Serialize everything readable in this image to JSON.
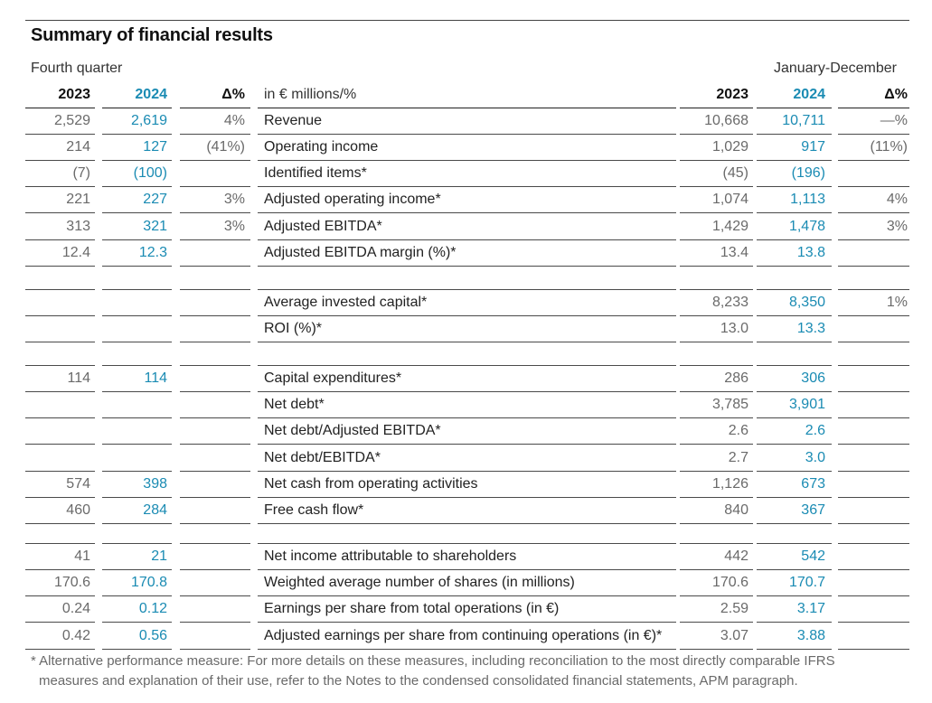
{
  "title": "Summary of financial results",
  "period_left": "Fourth quarter",
  "period_right": "January-December",
  "header": {
    "q_2023": "2023",
    "q_2024": "2024",
    "q_delta": "Δ%",
    "label": "in € millions/%",
    "y_2023": "2023",
    "y_2024": "2024",
    "y_delta": "Δ%"
  },
  "rows": [
    {
      "q23": "2,529",
      "q24": "2,619",
      "qd": "4%",
      "label": "Revenue",
      "y23": "10,668",
      "y24": "10,711",
      "yd": "—%"
    },
    {
      "q23": "214",
      "q24": "127",
      "qd": "(41%)",
      "label": "Operating income",
      "y23": "1,029",
      "y24": "917",
      "yd": "(11%)"
    },
    {
      "q23": "(7)",
      "q24": "(100)",
      "qd": "",
      "label": "Identified items*",
      "y23": "(45)",
      "y24": "(196)",
      "yd": ""
    },
    {
      "q23": "221",
      "q24": "227",
      "qd": "3%",
      "label": "Adjusted operating income*",
      "y23": "1,074",
      "y24": "1,113",
      "yd": "4%"
    },
    {
      "q23": "313",
      "q24": "321",
      "qd": "3%",
      "label": "Adjusted EBITDA*",
      "y23": "1,429",
      "y24": "1,478",
      "yd": "3%"
    },
    {
      "q23": "12.4",
      "q24": "12.3",
      "qd": "",
      "label": "Adjusted EBITDA margin (%)*",
      "y23": "13.4",
      "y24": "13.8",
      "yd": ""
    },
    {
      "q23": "",
      "q24": "",
      "qd": "",
      "label": "Average invested capital*",
      "y23": "8,233",
      "y24": "8,350",
      "yd": "1%"
    },
    {
      "q23": "",
      "q24": "",
      "qd": "",
      "label": "ROI (%)*",
      "y23": "13.0",
      "y24": "13.3",
      "yd": ""
    },
    {
      "q23": "114",
      "q24": "114",
      "qd": "",
      "label": "Capital expenditures*",
      "y23": "286",
      "y24": "306",
      "yd": ""
    },
    {
      "q23": "",
      "q24": "",
      "qd": "",
      "label": "Net debt*",
      "y23": "3,785",
      "y24": "3,901",
      "yd": ""
    },
    {
      "q23": "",
      "q24": "",
      "qd": "",
      "label": "Net debt/Adjusted EBITDA*",
      "y23": "2.6",
      "y24": "2.6",
      "yd": ""
    },
    {
      "q23": "",
      "q24": "",
      "qd": "",
      "label": "Net debt/EBITDA*",
      "y23": "2.7",
      "y24": "3.0",
      "yd": ""
    },
    {
      "q23": "574",
      "q24": "398",
      "qd": "",
      "label": "Net cash from operating activities",
      "y23": "1,126",
      "y24": "673",
      "yd": ""
    },
    {
      "q23": "460",
      "q24": "284",
      "qd": "",
      "label": "Free cash flow*",
      "y23": "840",
      "y24": "367",
      "yd": ""
    },
    {
      "q23": "41",
      "q24": "21",
      "qd": "",
      "label": "Net income attributable to shareholders",
      "y23": "442",
      "y24": "542",
      "yd": ""
    },
    {
      "q23": "170.6",
      "q24": "170.8",
      "qd": "",
      "label": "Weighted average number of shares (in millions)",
      "y23": "170.6",
      "y24": "170.7",
      "yd": ""
    },
    {
      "q23": "0.24",
      "q24": "0.12",
      "qd": "",
      "label": "Earnings per share from total operations (in €)",
      "y23": "2.59",
      "y24": "3.17",
      "yd": ""
    },
    {
      "q23": "0.42",
      "q24": "0.56",
      "qd": "",
      "label": "Adjusted earnings per share from continuing operations (in €)*",
      "y23": "3.07",
      "y24": "3.88",
      "yd": ""
    }
  ],
  "footnote_line1": "* Alternative performance measure: For more details on these measures, including reconciliation to the most directly comparable IFRS",
  "footnote_line2": "measures and explanation of their use, refer to the Notes to the condensed consolidated financial statements, APM paragraph."
}
